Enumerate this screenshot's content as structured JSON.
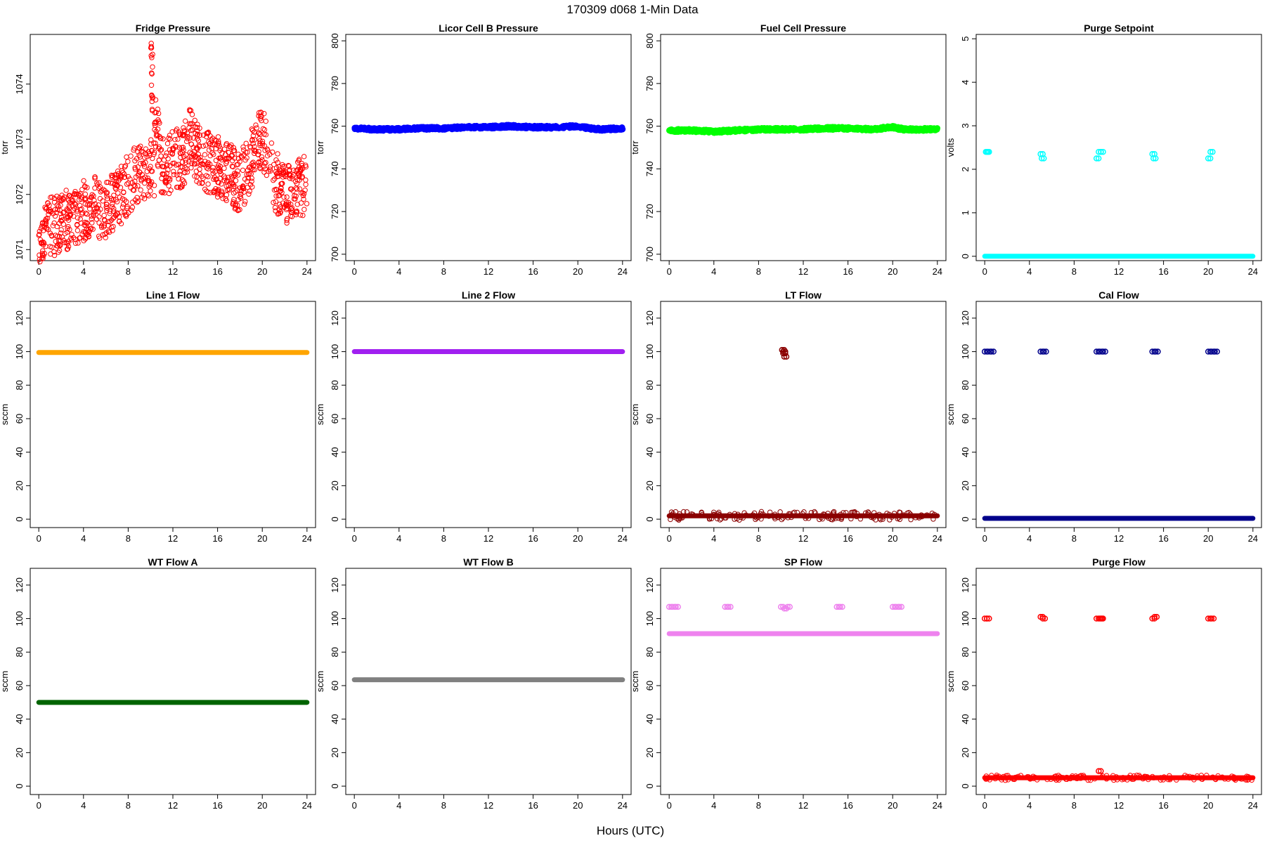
{
  "figure": {
    "title": "170309   d068   1-Min Data",
    "xlabel": "Hours (UTC)"
  },
  "chart_data": [
    {
      "id": "fridge-pressure",
      "type": "scatter",
      "title": "Fridge Pressure",
      "ylabel": "torr",
      "color": "#ff0000",
      "xlim": [
        0,
        24
      ],
      "ylim": [
        1070.8,
        1074.9
      ],
      "xticks": [
        0,
        4,
        8,
        12,
        16,
        20,
        24
      ],
      "yticks": [
        1071,
        1072,
        1073,
        1074
      ],
      "x": [
        0,
        1,
        2,
        3,
        4,
        5,
        6,
        7,
        8,
        9,
        10,
        10.1,
        10.2,
        11,
        12,
        13,
        13.5,
        14,
        15,
        16,
        17,
        18,
        19,
        19.5,
        20,
        20.5,
        21,
        22,
        23,
        24
      ],
      "y": [
        1071.3,
        1071.4,
        1071.5,
        1071.6,
        1071.7,
        1071.8,
        1071.7,
        1071.9,
        1072.2,
        1072.4,
        1072.3,
        1074.6,
        1073.7,
        1072.5,
        1072.6,
        1072.7,
        1073.1,
        1072.8,
        1072.6,
        1072.5,
        1072.4,
        1072.2,
        1072.6,
        1072.9,
        1073.0,
        1072.8,
        1072.3,
        1072.0,
        1072.1,
        1072.2
      ]
    },
    {
      "id": "licor-cell-b-pressure",
      "type": "scatter",
      "title": "Licor Cell B Pressure",
      "ylabel": "torr",
      "color": "#0000ff",
      "xlim": [
        0,
        24
      ],
      "ylim": [
        697,
        803
      ],
      "xticks": [
        0,
        4,
        8,
        12,
        16,
        20,
        24
      ],
      "yticks": [
        700,
        720,
        740,
        760,
        780,
        800
      ],
      "x": [
        0,
        2,
        4,
        6,
        8,
        10,
        12,
        14,
        16,
        18,
        20,
        21,
        22,
        24
      ],
      "y": [
        759,
        758.5,
        758.5,
        759,
        759,
        759.5,
        759.5,
        760,
        759.5,
        759.5,
        760,
        759,
        758.5,
        759
      ]
    },
    {
      "id": "fuel-cell-pressure",
      "type": "scatter",
      "title": "Fuel Cell Pressure",
      "ylabel": "torr",
      "color": "#00ff00",
      "xlim": [
        0,
        24
      ],
      "ylim": [
        697,
        803
      ],
      "xticks": [
        0,
        4,
        8,
        12,
        16,
        20,
        24
      ],
      "yticks": [
        700,
        720,
        740,
        760,
        780,
        800
      ],
      "x": [
        0,
        2,
        4,
        6,
        8,
        10,
        12,
        14,
        16,
        18,
        20,
        21,
        22,
        24
      ],
      "y": [
        758,
        758,
        757.5,
        758,
        758.5,
        758.5,
        758.5,
        759,
        759,
        758.5,
        759.5,
        758.5,
        758.5,
        758.5
      ]
    },
    {
      "id": "purge-setpoint",
      "type": "scatter",
      "title": "Purge Setpoint",
      "ylabel": "volts",
      "color": "#00ffff",
      "xlim": [
        0,
        24
      ],
      "ylim": [
        -0.1,
        5.1
      ],
      "xticks": [
        0,
        4,
        8,
        12,
        16,
        20,
        24
      ],
      "yticks": [
        0,
        1,
        2,
        3,
        4,
        5
      ],
      "baseline": 0,
      "x": [
        0.1,
        0.2,
        5.0,
        5.1,
        10.0,
        10.2,
        10.4,
        15.0,
        15.1,
        20.0,
        20.2
      ],
      "y": [
        2.4,
        2.4,
        2.35,
        2.25,
        2.25,
        2.4,
        2.4,
        2.35,
        2.25,
        2.25,
        2.4
      ]
    },
    {
      "id": "line-1-flow",
      "type": "scatter",
      "title": "Line 1 Flow",
      "ylabel": "sccm",
      "color": "#ffa500",
      "xlim": [
        0,
        24
      ],
      "ylim": [
        -5,
        130
      ],
      "xticks": [
        0,
        4,
        8,
        12,
        16,
        20,
        24
      ],
      "yticks": [
        0,
        20,
        40,
        60,
        80,
        100,
        120
      ],
      "baseline": 99.5,
      "x": [],
      "y": []
    },
    {
      "id": "line-2-flow",
      "type": "scatter",
      "title": "Line 2 Flow",
      "ylabel": "sccm",
      "color": "#a020f0",
      "xlim": [
        0,
        24
      ],
      "ylim": [
        -5,
        130
      ],
      "xticks": [
        0,
        4,
        8,
        12,
        16,
        20,
        24
      ],
      "yticks": [
        0,
        20,
        40,
        60,
        80,
        100,
        120
      ],
      "baseline": 100,
      "x": [],
      "y": []
    },
    {
      "id": "lt-flow",
      "type": "scatter",
      "title": "LT Flow",
      "ylabel": "sccm",
      "color": "#8b0000",
      "xlim": [
        0,
        24
      ],
      "ylim": [
        -5,
        130
      ],
      "xticks": [
        0,
        4,
        8,
        12,
        16,
        20,
        24
      ],
      "yticks": [
        0,
        20,
        40,
        60,
        80,
        100,
        120
      ],
      "baseline": 2,
      "x": [
        10.1,
        10.2,
        10.3,
        10.2
      ],
      "y": [
        101,
        99,
        97,
        100
      ]
    },
    {
      "id": "cal-flow",
      "type": "scatter",
      "title": "Cal Flow",
      "ylabel": "sccm",
      "color": "#00008b",
      "xlim": [
        0,
        24
      ],
      "ylim": [
        -5,
        130
      ],
      "xticks": [
        0,
        4,
        8,
        12,
        16,
        20,
        24
      ],
      "yticks": [
        0,
        20,
        40,
        60,
        80,
        100,
        120
      ],
      "baseline": 0.5,
      "x": [
        0.0,
        0.3,
        0.6,
        5.0,
        5.3,
        10.0,
        10.3,
        10.6,
        15.0,
        15.3,
        20.0,
        20.3,
        20.6
      ],
      "y": [
        100,
        100,
        100,
        100,
        100,
        100,
        100,
        100,
        100,
        100,
        100,
        100,
        100
      ]
    },
    {
      "id": "wt-flow-a",
      "type": "scatter",
      "title": "WT Flow A",
      "ylabel": "sccm",
      "color": "#006400",
      "xlim": [
        0,
        24
      ],
      "ylim": [
        -5,
        130
      ],
      "xticks": [
        0,
        4,
        8,
        12,
        16,
        20,
        24
      ],
      "yticks": [
        0,
        20,
        40,
        60,
        80,
        100,
        120
      ],
      "baseline": 50,
      "x": [],
      "y": []
    },
    {
      "id": "wt-flow-b",
      "type": "scatter",
      "title": "WT Flow B",
      "ylabel": "sccm",
      "color": "#808080",
      "xlim": [
        0,
        24
      ],
      "ylim": [
        -5,
        130
      ],
      "xticks": [
        0,
        4,
        8,
        12,
        16,
        20,
        24
      ],
      "yticks": [
        0,
        20,
        40,
        60,
        80,
        100,
        120
      ],
      "baseline": 63.5,
      "x": [],
      "y": []
    },
    {
      "id": "sp-flow",
      "type": "scatter",
      "title": "SP Flow",
      "ylabel": "sccm",
      "color": "#ee82ee",
      "xlim": [
        0,
        24
      ],
      "ylim": [
        -5,
        130
      ],
      "xticks": [
        0,
        4,
        8,
        12,
        16,
        20,
        24
      ],
      "yticks": [
        0,
        20,
        40,
        60,
        80,
        100,
        120
      ],
      "baseline": 91,
      "x": [
        0.0,
        0.3,
        0.6,
        5.0,
        5.3,
        10.0,
        10.3,
        10.6,
        15.0,
        15.3,
        20.0,
        20.3,
        20.6
      ],
      "y": [
        107,
        107,
        107,
        107,
        107,
        107,
        106,
        107,
        107,
        107,
        107,
        107,
        107
      ]
    },
    {
      "id": "purge-flow",
      "type": "scatter",
      "title": "Purge Flow",
      "ylabel": "sccm",
      "color": "#ff0000",
      "xlim": [
        0,
        24
      ],
      "ylim": [
        -5,
        130
      ],
      "xticks": [
        0,
        4,
        8,
        12,
        16,
        20,
        24
      ],
      "yticks": [
        0,
        20,
        40,
        60,
        80,
        100,
        120
      ],
      "baseline": 5,
      "x": [
        0.0,
        0.2,
        5.0,
        5.2,
        10.0,
        10.3,
        10.4,
        10.2,
        15.0,
        15.2,
        20.0,
        20.3
      ],
      "y": [
        100,
        100,
        101,
        100,
        100,
        100,
        100,
        9,
        100,
        101,
        100,
        100
      ]
    }
  ]
}
